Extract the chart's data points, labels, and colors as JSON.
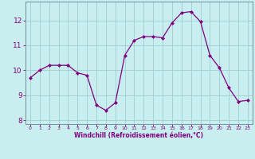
{
  "x": [
    0,
    1,
    2,
    3,
    4,
    5,
    6,
    7,
    8,
    9,
    10,
    11,
    12,
    13,
    14,
    15,
    16,
    17,
    18,
    19,
    20,
    21,
    22,
    23
  ],
  "y": [
    9.7,
    10.0,
    10.2,
    10.2,
    10.2,
    9.9,
    9.8,
    8.6,
    8.4,
    8.7,
    10.6,
    11.2,
    11.35,
    11.35,
    11.3,
    11.9,
    12.3,
    12.35,
    11.95,
    10.6,
    10.1,
    9.3,
    8.75,
    8.8
  ],
  "line_color": "#800080",
  "marker": "D",
  "marker_size": 2.0,
  "bg_color": "#c8eef0",
  "grid_color": "#9ecdd4",
  "xlabel": "Windchill (Refroidissement éolien,°C)",
  "xlabel_color": "#800080",
  "tick_color": "#800080",
  "spine_color": "#7090a0",
  "ylim": [
    7.85,
    12.75
  ],
  "xlim": [
    -0.5,
    23.5
  ],
  "yticks": [
    8,
    9,
    10,
    11,
    12
  ],
  "xticks": [
    0,
    1,
    2,
    3,
    4,
    5,
    6,
    7,
    8,
    9,
    10,
    11,
    12,
    13,
    14,
    15,
    16,
    17,
    18,
    19,
    20,
    21,
    22,
    23
  ]
}
